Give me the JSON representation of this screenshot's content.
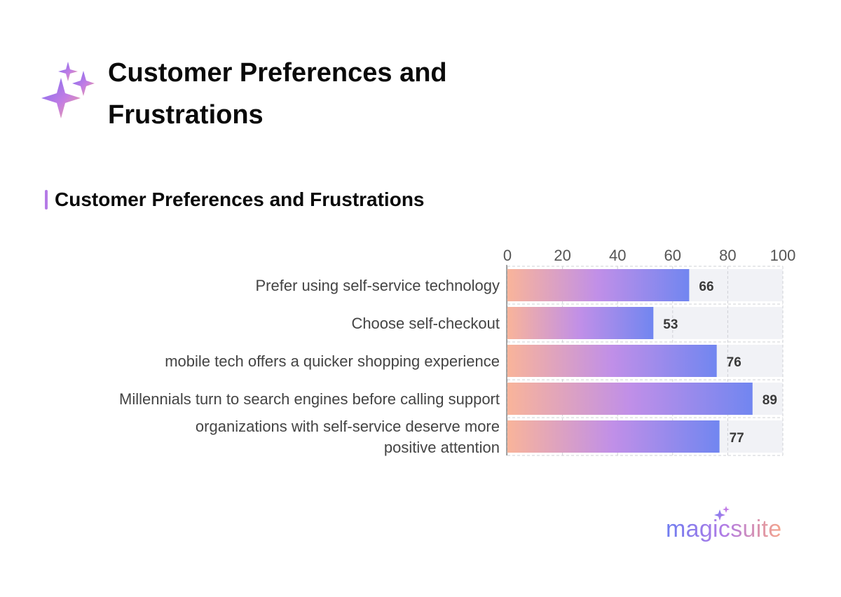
{
  "header": {
    "title": "Customer Preferences and Frustrations",
    "icon": "sparkles-icon"
  },
  "section": {
    "title": "Customer Preferences and Frustrations",
    "accent_color": "#b57be6"
  },
  "chart_data": {
    "type": "bar",
    "orientation": "horizontal",
    "categories": [
      "Prefer using self-service technology",
      "Choose self-checkout",
      "mobile tech offers a quicker shopping experience",
      "Millennials turn to search engines before calling support",
      "organizations with self-service deserve more positive attention"
    ],
    "values": [
      66,
      53,
      76,
      89,
      77
    ],
    "xlim": [
      0,
      100
    ],
    "x_ticks": [
      0,
      20,
      40,
      60,
      80,
      100
    ],
    "x_tick_labels": [
      "0",
      "20",
      "40",
      "60",
      "80",
      "100"
    ],
    "grid": true,
    "x_axis_position": "top",
    "data_labels": true,
    "bar_gradient": [
      "#f9b49a",
      "#c08fe8",
      "#7186f0"
    ],
    "track_color": "#f1f2f6"
  },
  "brand": {
    "name": "magicsuite",
    "gradient": [
      "#6e7cf0",
      "#b07be6",
      "#f6a58a"
    ]
  }
}
